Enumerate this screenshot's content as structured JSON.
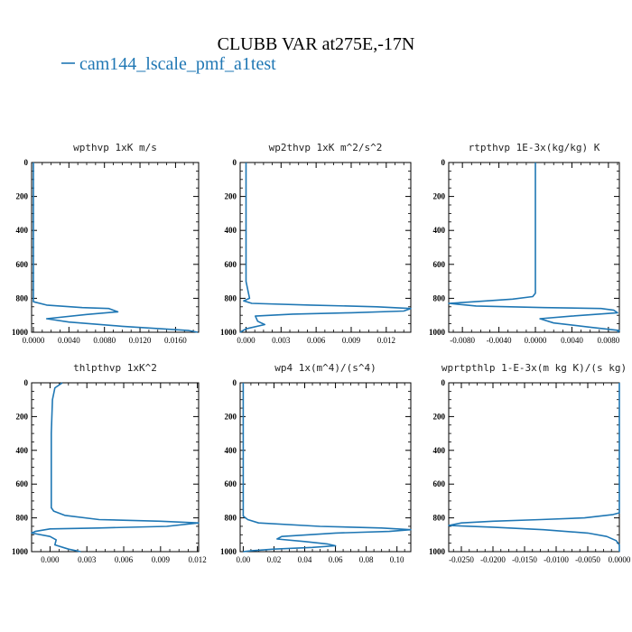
{
  "figure": {
    "title": "CLUBB VAR at275E,-17N",
    "legend": {
      "label": "cam144_lscale_pmf_a1test",
      "color": "#1f77b4"
    }
  },
  "chart_data": [
    {
      "type": "line",
      "title": "wpthvp   1xK m/s",
      "xlim": [
        -0.0002,
        0.0186
      ],
      "ylim": [
        1000,
        0
      ],
      "xticks": [
        0.0,
        0.004,
        0.008,
        0.012,
        0.016
      ],
      "xtick_labels": [
        "0.0000",
        "0.0040",
        "0.0080",
        "0.0120",
        "0.0160"
      ],
      "yticks": [
        0,
        200,
        400,
        600,
        800,
        1000
      ],
      "ytick_labels": [
        "0",
        "200",
        "400",
        "600",
        "800",
        "1000"
      ],
      "series": [
        {
          "color": "#1f77b4",
          "points": [
            [
              0.0,
              0
            ],
            [
              0.0,
              700
            ],
            [
              0.0,
              820
            ],
            [
              0.0015,
              840
            ],
            [
              0.0055,
              855
            ],
            [
              0.0085,
              860
            ],
            [
              0.0095,
              880
            ],
            [
              0.006,
              895
            ],
            [
              0.0015,
              920
            ],
            [
              0.004,
              940
            ],
            [
              0.01,
              965
            ],
            [
              0.0175,
              990
            ],
            [
              0.0185,
              1000
            ]
          ]
        }
      ]
    },
    {
      "type": "line",
      "title": "wp2thvp   1xK m^2/s^2",
      "xlim": [
        -0.0005,
        0.0141
      ],
      "ylim": [
        1000,
        0
      ],
      "xticks": [
        0.0,
        0.003,
        0.006,
        0.009,
        0.012
      ],
      "xtick_labels": [
        "0.000",
        "0.003",
        "0.006",
        "0.009",
        "0.012"
      ],
      "yticks": [
        0,
        200,
        400,
        600,
        800,
        1000
      ],
      "ytick_labels": [
        "0",
        "200",
        "400",
        "600",
        "800",
        "1000"
      ],
      "series": [
        {
          "color": "#1f77b4",
          "points": [
            [
              0.0,
              0
            ],
            [
              0.0,
              700
            ],
            [
              0.0003,
              800
            ],
            [
              -0.0002,
              815
            ],
            [
              0.0005,
              830
            ],
            [
              0.0055,
              840
            ],
            [
              0.0112,
              850
            ],
            [
              0.0141,
              860
            ],
            [
              0.0135,
              875
            ],
            [
              0.009,
              885
            ],
            [
              0.004,
              893
            ],
            [
              0.0008,
              905
            ],
            [
              0.001,
              935
            ],
            [
              0.0016,
              955
            ],
            [
              0.0,
              980
            ],
            [
              -0.0005,
              1000
            ]
          ]
        }
      ]
    },
    {
      "type": "line",
      "title": "rtpthvp   1E-3x(kg/kg) K",
      "xlim": [
        -0.0095,
        0.0092
      ],
      "ylim": [
        1000,
        0
      ],
      "xticks": [
        -0.008,
        -0.004,
        0.0,
        0.004,
        0.008
      ],
      "xtick_labels": [
        "-0.0080",
        "-0.0040",
        "0.0000",
        "0.0040",
        "0.0080"
      ],
      "yticks": [
        0,
        200,
        400,
        600,
        800,
        1000
      ],
      "ytick_labels": [
        "0",
        "200",
        "400",
        "600",
        "800",
        "1000"
      ],
      "series": [
        {
          "color": "#1f77b4",
          "points": [
            [
              0.0,
              0
            ],
            [
              0.0,
              770
            ],
            [
              -0.0003,
              790
            ],
            [
              -0.0025,
              805
            ],
            [
              -0.008,
              825
            ],
            [
              -0.0095,
              830
            ],
            [
              -0.0065,
              845
            ],
            [
              0.001,
              855
            ],
            [
              0.0072,
              860
            ],
            [
              0.0086,
              870
            ],
            [
              0.009,
              885
            ],
            [
              0.004,
              905
            ],
            [
              0.0005,
              920
            ],
            [
              0.002,
              945
            ],
            [
              0.006,
              970
            ],
            [
              0.0092,
              990
            ],
            [
              0.009,
              1000
            ]
          ]
        }
      ]
    },
    {
      "type": "line",
      "title": "thlpthvp   1xK^2",
      "xlim": [
        -0.0015,
        0.0121
      ],
      "ylim": [
        1000,
        0
      ],
      "xticks": [
        0.0,
        0.003,
        0.006,
        0.009,
        0.012
      ],
      "xtick_labels": [
        "0.000",
        "0.003",
        "0.006",
        "0.009",
        "0.012"
      ],
      "yticks": [
        0,
        200,
        400,
        600,
        800,
        1000
      ],
      "ytick_labels": [
        "0",
        "200",
        "400",
        "600",
        "800",
        "1000"
      ],
      "series": [
        {
          "color": "#1f77b4",
          "points": [
            [
              0.001,
              0
            ],
            [
              0.0004,
              30
            ],
            [
              0.0002,
              100
            ],
            [
              0.0001,
              300
            ],
            [
              0.0001,
              500
            ],
            [
              0.0001,
              740
            ],
            [
              0.0003,
              760
            ],
            [
              0.0012,
              785
            ],
            [
              0.004,
              810
            ],
            [
              0.009,
              820
            ],
            [
              0.0121,
              830
            ],
            [
              0.0095,
              850
            ],
            [
              0.004,
              860
            ],
            [
              0.0,
              865
            ],
            [
              -0.0012,
              880
            ],
            [
              -0.0015,
              890
            ],
            [
              0.0,
              910
            ],
            [
              0.0005,
              930
            ],
            [
              0.0004,
              960
            ],
            [
              0.0015,
              985
            ],
            [
              0.0025,
              1000
            ]
          ]
        }
      ]
    },
    {
      "type": "line",
      "title": "wp4   1x(m^4)/(s^4)",
      "xlim": [
        -0.002,
        0.109
      ],
      "ylim": [
        1000,
        0
      ],
      "xticks": [
        0.0,
        0.02,
        0.04,
        0.06,
        0.08,
        0.1
      ],
      "xtick_labels": [
        "0.00",
        "0.02",
        "0.04",
        "0.06",
        "0.08",
        "0.10"
      ],
      "yticks": [
        0,
        200,
        400,
        600,
        800,
        1000
      ],
      "ytick_labels": [
        "0",
        "200",
        "400",
        "600",
        "800",
        "1000"
      ],
      "series": [
        {
          "color": "#1f77b4",
          "points": [
            [
              0.0,
              0
            ],
            [
              0.0,
              790
            ],
            [
              0.003,
              810
            ],
            [
              0.01,
              830
            ],
            [
              0.05,
              850
            ],
            [
              0.09,
              860
            ],
            [
              0.109,
              870
            ],
            [
              0.095,
              880
            ],
            [
              0.06,
              890
            ],
            [
              0.025,
              910
            ],
            [
              0.022,
              925
            ],
            [
              0.04,
              940
            ],
            [
              0.055,
              955
            ],
            [
              0.06,
              965
            ],
            [
              0.045,
              975
            ],
            [
              0.02,
              985
            ],
            [
              0.005,
              995
            ],
            [
              0.0,
              1000
            ]
          ]
        }
      ]
    },
    {
      "type": "line",
      "title": "wprtpthlp   1-E-3x(m kg K)/(s kg)",
      "xlim": [
        -0.027,
        0.0
      ],
      "ylim": [
        1000,
        0
      ],
      "xticks": [
        -0.025,
        -0.02,
        -0.015,
        -0.01,
        -0.005,
        0.0
      ],
      "xtick_labels": [
        "-0.0250",
        "-0.0200",
        "-0.0150",
        "-0.0100",
        "-0.0050",
        "0.0000"
      ],
      "yticks": [
        0,
        200,
        400,
        600,
        800,
        1000
      ],
      "ytick_labels": [
        "0",
        "200",
        "400",
        "600",
        "800",
        "1000"
      ],
      "series": [
        {
          "color": "#1f77b4",
          "points": [
            [
              0.0,
              0
            ],
            [
              0.0,
              770
            ],
            [
              -0.001,
              780
            ],
            [
              -0.0055,
              800
            ],
            [
              -0.0125,
              810
            ],
            [
              -0.02,
              820
            ],
            [
              -0.025,
              830
            ],
            [
              -0.027,
              845
            ],
            [
              -0.02,
              855
            ],
            [
              -0.012,
              870
            ],
            [
              -0.005,
              890
            ],
            [
              -0.002,
              910
            ],
            [
              -0.0005,
              935
            ],
            [
              0.0,
              960
            ],
            [
              0.0,
              1000
            ]
          ]
        }
      ]
    }
  ]
}
